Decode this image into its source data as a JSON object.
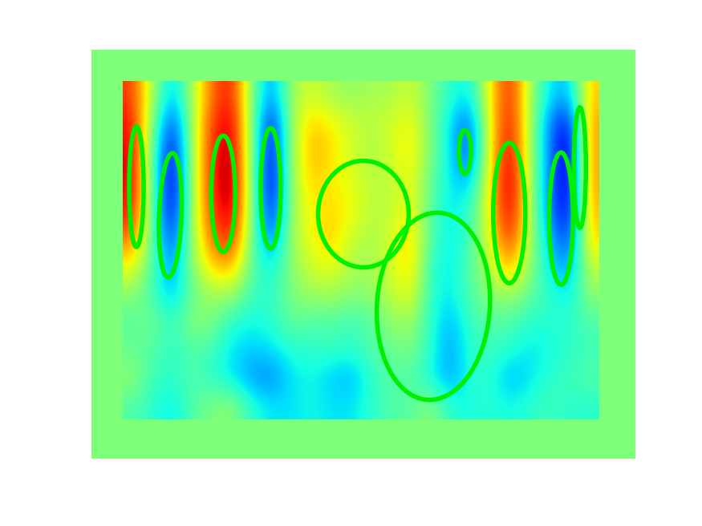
{
  "chart_data": {
    "type": "heatmap",
    "tick_labels": false,
    "clim": [
      -1,
      1
    ],
    "color": "#00ee00",
    "cells": [
      [
        0.7,
        0.1,
        -0.4,
        0.1,
        0.6,
        0.8,
        0.0,
        -0.5,
        0.1,
        0.2,
        0.1,
        0.05,
        0.1,
        0.1,
        0.2,
        0.0,
        -0.2,
        -0.3,
        0.3,
        0.8,
        0.1,
        -0.3,
        -0.4,
        0.4
      ],
      [
        0.8,
        0.0,
        -0.7,
        0.1,
        0.7,
        0.9,
        0.0,
        -0.8,
        0.1,
        0.4,
        0.3,
        0.2,
        0.15,
        0.2,
        0.3,
        0.0,
        -0.3,
        -0.6,
        0.3,
        0.85,
        0.1,
        -0.5,
        -0.8,
        0.5
      ],
      [
        0.85,
        -0.1,
        -0.85,
        0.1,
        0.75,
        0.95,
        0.0,
        -0.85,
        0.1,
        0.45,
        0.35,
        0.2,
        0.1,
        0.2,
        0.35,
        0.0,
        -0.3,
        -0.65,
        0.3,
        0.9,
        0.1,
        -0.5,
        -0.9,
        0.5
      ],
      [
        0.85,
        -0.1,
        -0.9,
        0.1,
        0.75,
        1.0,
        0.0,
        -0.9,
        0.1,
        0.4,
        0.3,
        0.25,
        0.15,
        0.15,
        0.3,
        -0.05,
        -0.3,
        -0.4,
        0.3,
        1.0,
        0.1,
        -0.5,
        -0.9,
        0.5
      ],
      [
        0.8,
        -0.1,
        -0.85,
        0.1,
        0.7,
        0.95,
        0.0,
        -0.8,
        0.1,
        0.3,
        0.35,
        0.3,
        0.15,
        0.15,
        0.3,
        -0.1,
        -0.3,
        -0.2,
        0.3,
        0.95,
        0.1,
        -0.5,
        -0.85,
        0.45
      ],
      [
        0.6,
        -0.1,
        -0.7,
        0.1,
        0.6,
        0.8,
        -0.05,
        -0.6,
        0.1,
        0.3,
        0.4,
        0.2,
        0.1,
        0.2,
        0.4,
        -0.1,
        -0.3,
        -0.15,
        0.25,
        0.8,
        0.1,
        -0.4,
        -0.7,
        0.4
      ],
      [
        0.3,
        -0.1,
        -0.5,
        0.05,
        0.4,
        0.5,
        -0.1,
        -0.3,
        0.05,
        0.2,
        0.3,
        0.1,
        0.1,
        0.2,
        0.4,
        -0.2,
        -0.3,
        -0.1,
        0.15,
        0.5,
        0.05,
        -0.3,
        -0.5,
        0.2
      ],
      [
        0.05,
        -0.15,
        -0.4,
        -0.05,
        0.1,
        0.1,
        -0.15,
        -0.2,
        0.0,
        0.1,
        0.1,
        0.05,
        0.05,
        0.15,
        0.3,
        -0.2,
        -0.3,
        -0.1,
        0.05,
        0.1,
        -0.05,
        -0.2,
        -0.3,
        0.05
      ],
      [
        -0.1,
        0.0,
        -0.2,
        0.05,
        0.0,
        -0.2,
        -0.25,
        -0.2,
        -0.05,
        -0.1,
        -0.1,
        -0.15,
        -0.1,
        0.05,
        0.1,
        -0.2,
        -0.4,
        -0.15,
        -0.1,
        -0.1,
        -0.2,
        -0.2,
        -0.2,
        -0.1
      ],
      [
        -0.05,
        -0.1,
        -0.2,
        -0.1,
        -0.15,
        -0.3,
        -0.35,
        -0.3,
        -0.2,
        -0.2,
        -0.15,
        -0.2,
        -0.1,
        -0.05,
        0.0,
        -0.2,
        -0.45,
        -0.2,
        -0.15,
        -0.2,
        -0.3,
        -0.25,
        -0.2,
        -0.15
      ],
      [
        0.05,
        -0.15,
        -0.2,
        -0.1,
        -0.2,
        -0.3,
        -0.45,
        -0.5,
        -0.3,
        -0.25,
        -0.35,
        -0.4,
        -0.2,
        -0.1,
        -0.1,
        -0.25,
        -0.45,
        -0.2,
        -0.2,
        -0.4,
        -0.3,
        -0.2,
        -0.15,
        -0.1
      ],
      [
        -0.1,
        -0.2,
        -0.3,
        -0.1,
        0.0,
        0.05,
        -0.2,
        -0.3,
        -0.3,
        -0.25,
        -0.3,
        -0.3,
        -0.2,
        -0.1,
        -0.1,
        0.05,
        -0.2,
        -0.25,
        -0.2,
        -0.25,
        -0.2,
        -0.15,
        -0.2,
        -0.2
      ]
    ],
    "ellipses": [
      {
        "col": 0.19,
        "row": 3.25,
        "width": 0.73,
        "height": 4.27,
        "angle": 0
      },
      {
        "col": 1.9,
        "row": 4.26,
        "width": 1.13,
        "height": 4.41,
        "angle": 3
      },
      {
        "col": 4.57,
        "row": 3.5,
        "width": 1.21,
        "height": 4.12,
        "angle": 0
      },
      {
        "col": 6.96,
        "row": 3.31,
        "width": 1.01,
        "height": 4.27,
        "angle": 0
      },
      {
        "col": 11.64,
        "row": 4.22,
        "width": 4.57,
        "height": 3.78,
        "angle": 0
      },
      {
        "col": 15.17,
        "row": 7.49,
        "width": 5.67,
        "height": 6.68,
        "angle": 12
      },
      {
        "col": 16.76,
        "row": 2.02,
        "width": 0.61,
        "height": 1.56,
        "angle": 0
      },
      {
        "col": 19.0,
        "row": 4.18,
        "width": 1.62,
        "height": 4.98,
        "angle": 0
      },
      {
        "col": 21.61,
        "row": 4.38,
        "width": 1.21,
        "height": 4.69,
        "angle": 0
      },
      {
        "col": 22.56,
        "row": 2.57,
        "width": 0.61,
        "height": 4.27,
        "angle": 0
      }
    ]
  }
}
